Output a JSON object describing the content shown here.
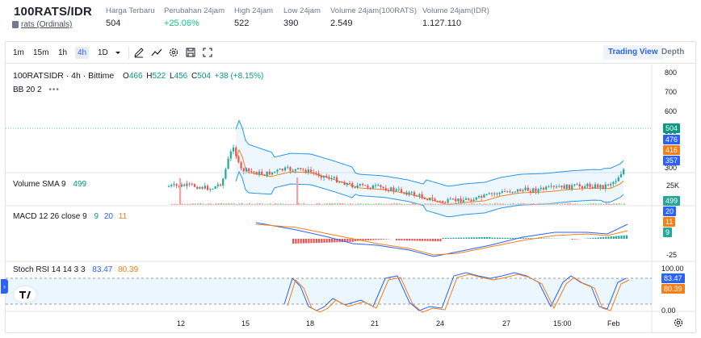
{
  "ticker": {
    "pair": "100RATS/IDR",
    "sub_link": "rats (Ordinals)",
    "stats": [
      {
        "label": "Harga Terbaru",
        "value": "504",
        "up": false
      },
      {
        "label": "Perubahan 24jam",
        "value": "+25.06%",
        "up": true
      },
      {
        "label": "High 24jam",
        "value": "522",
        "up": false
      },
      {
        "label": "Low 24jam",
        "value": "390",
        "up": false
      },
      {
        "label": "Volume 24jam(100RATS)",
        "value": "2.549",
        "up": false
      },
      {
        "label": "Volume 24jam(IDR)",
        "value": "1.127.110",
        "up": false
      }
    ]
  },
  "toolbar": {
    "timeframes": [
      "1m",
      "15m",
      "1h",
      "4h",
      "1D"
    ],
    "active_timeframe": "4h",
    "icons": [
      "chevron-down-icon",
      "draw-icon",
      "indicator-icon",
      "settings-icon",
      "save-icon",
      "fullscreen-icon"
    ],
    "trading_view_label": "Trading View",
    "depth_label": "Depth"
  },
  "main_pane": {
    "symbol": "100RATSIDR · 4h · Bittime",
    "ohlc": {
      "o_lbl": "O",
      "o": "466",
      "h_lbl": "H",
      "h": "522",
      "l_lbl": "L",
      "l": "456",
      "c_lbl": "C",
      "c": "504",
      "chg": "+38 (+8.15%)"
    },
    "bb_label": "BB 20 2",
    "more": "•••",
    "y_ticks": [
      "800",
      "700",
      "600",
      "500",
      "400",
      "300"
    ],
    "tags": [
      {
        "text": "504",
        "color": "#089981"
      },
      {
        "text": "476",
        "color": "#2962ff"
      },
      {
        "text": "416",
        "color": "#f57f17"
      },
      {
        "text": "357",
        "color": "#2962ff"
      }
    ]
  },
  "volume_pane": {
    "label": "Volume SMA 9",
    "value": "499",
    "y_tick": "25K",
    "tag": "499",
    "tag_color": "#26a69a"
  },
  "macd_pane": {
    "label": "MACD 12 26 close 9",
    "v1": "9",
    "v2": "20",
    "v3": "11",
    "y_tick": "-25",
    "tags": [
      {
        "text": "20",
        "color": "#2962ff"
      },
      {
        "text": "11",
        "color": "#f57f17"
      },
      {
        "text": "9",
        "color": "#26a69a"
      }
    ]
  },
  "rsi_pane": {
    "label": "Stoch RSI 14 14 3 3",
    "k": "83.47",
    "d": "80.39",
    "y_ticks": [
      "100.00",
      "0.00"
    ],
    "tags": [
      {
        "text": "83.47",
        "color": "#2962ff"
      },
      {
        "text": "80.39",
        "color": "#f57f17"
      }
    ]
  },
  "x_axis": [
    "12",
    "15",
    "18",
    "21",
    "24",
    "27",
    "15:00",
    "Feb"
  ],
  "colors": {
    "up": "#26a69a",
    "down": "#ef5350",
    "bb": "#2196f3",
    "basis": "#f57f17"
  }
}
